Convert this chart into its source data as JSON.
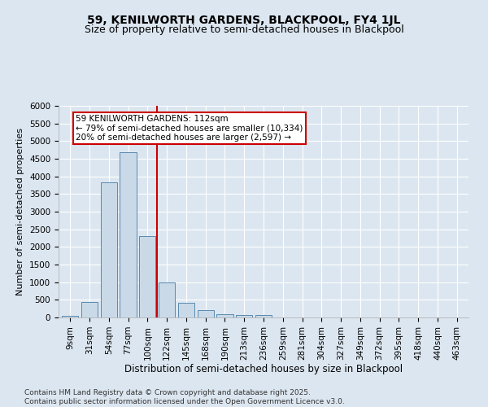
{
  "title": "59, KENILWORTH GARDENS, BLACKPOOL, FY4 1JL",
  "subtitle": "Size of property relative to semi-detached houses in Blackpool",
  "xlabel": "Distribution of semi-detached houses by size in Blackpool",
  "ylabel": "Number of semi-detached properties",
  "categories": [
    "9sqm",
    "31sqm",
    "54sqm",
    "77sqm",
    "100sqm",
    "122sqm",
    "145sqm",
    "168sqm",
    "190sqm",
    "213sqm",
    "236sqm",
    "259sqm",
    "281sqm",
    "304sqm",
    "327sqm",
    "349sqm",
    "372sqm",
    "395sqm",
    "418sqm",
    "440sqm",
    "463sqm"
  ],
  "values": [
    55,
    445,
    3820,
    4680,
    2300,
    1000,
    410,
    200,
    90,
    65,
    65,
    0,
    0,
    0,
    0,
    0,
    0,
    0,
    0,
    0,
    0
  ],
  "bar_color": "#c9d9e8",
  "bar_edge_color": "#5a8ab0",
  "vline_pos": 4.5,
  "vline_color": "#cc0000",
  "annotation_title": "59 KENILWORTH GARDENS: 112sqm",
  "annotation_line1": "← 79% of semi-detached houses are smaller (10,334)",
  "annotation_line2": "20% of semi-detached houses are larger (2,597) →",
  "annotation_box_color": "#cc0000",
  "ylim": [
    0,
    6000
  ],
  "yticks": [
    0,
    500,
    1000,
    1500,
    2000,
    2500,
    3000,
    3500,
    4000,
    4500,
    5000,
    5500,
    6000
  ],
  "background_color": "#dce6f0",
  "grid_color": "#ffffff",
  "footnote": "Contains HM Land Registry data © Crown copyright and database right 2025.\nContains public sector information licensed under the Open Government Licence v3.0.",
  "title_fontsize": 10,
  "subtitle_fontsize": 9,
  "xlabel_fontsize": 8.5,
  "ylabel_fontsize": 8,
  "tick_fontsize": 7.5,
  "annotation_fontsize": 7.5,
  "footnote_fontsize": 6.5
}
